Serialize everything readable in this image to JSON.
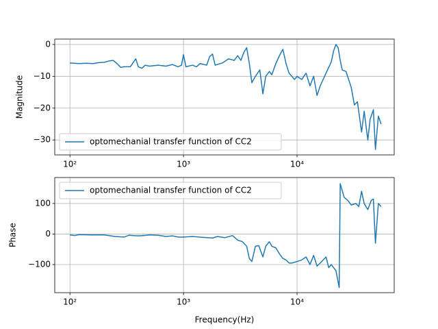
{
  "chart_data": [
    {
      "type": "line",
      "ylabel": "Magnitude",
      "log_x": true,
      "grid": true,
      "legend": "lower left",
      "xlim": [
        73.5,
        71700
      ],
      "ylim": [
        -34.7,
        1.7
      ],
      "xticks": [
        {
          "value": 100,
          "label": "10²"
        },
        {
          "value": 1000,
          "label": "10³"
        },
        {
          "value": 10000,
          "label": "10⁴"
        }
      ],
      "yticks": [
        {
          "value": -30,
          "label": "−30"
        },
        {
          "value": -20,
          "label": "−20"
        },
        {
          "value": -10,
          "label": "−10"
        },
        0
      ],
      "x": [
        100,
        120,
        140,
        160,
        180,
        200,
        220,
        240,
        260,
        280,
        300,
        340,
        380,
        400,
        430,
        460,
        500,
        600,
        700,
        800,
        900,
        960,
        1000,
        1050,
        1200,
        1300,
        1400,
        1600,
        1700,
        1800,
        1900,
        2200,
        2500,
        2800,
        3000,
        3200,
        3400,
        3600,
        3800,
        4000,
        4300,
        4700,
        5000,
        5300,
        5700,
        6000,
        6500,
        7000,
        7500,
        8000,
        8500,
        9000,
        9500,
        10000,
        11000,
        12000,
        13000,
        14000,
        15000,
        16000,
        18000,
        20000,
        21000,
        22000,
        23000,
        24000,
        25000,
        27000,
        30000,
        32000,
        34000,
        37000,
        39000,
        42000,
        44000,
        47000,
        49000,
        52000,
        55000
      ],
      "series": [
        {
          "name": "optomechanial transfer function of CC2",
          "color": "#1f77b4",
          "values": [
            -5.8,
            -6,
            -5.9,
            -6,
            -5.7,
            -5.6,
            -5.2,
            -5,
            -6,
            -7.2,
            -7,
            -7,
            -4.5,
            -7,
            -7.5,
            -6.5,
            -6.8,
            -6.5,
            -6.8,
            -6.3,
            -7,
            -6.5,
            -3.2,
            -7,
            -6.5,
            -7,
            -6,
            -6.5,
            -3.8,
            -3,
            -6.5,
            -5.8,
            -4.5,
            -5,
            -3.5,
            -5,
            -2.5,
            -1,
            -6,
            -12,
            -10,
            -8,
            -15.5,
            -10,
            -8.5,
            -9.5,
            -6,
            -3.5,
            -1.5,
            -6,
            -9,
            -10,
            -11,
            -10,
            -11,
            -9,
            -13,
            -10,
            -16,
            -13,
            -9,
            -5.5,
            -2,
            0,
            -1,
            -5,
            -8,
            -8.5,
            -13.5,
            -19,
            -18,
            -27.5,
            -21,
            -30,
            -23.5,
            -20.5,
            -33,
            -22.5,
            -25
          ]
        }
      ]
    },
    {
      "type": "line",
      "ylabel": "Phase",
      "xlabel": "Frequency(Hz)",
      "log_x": true,
      "grid": true,
      "legend": "upper left",
      "xlim": [
        73.5,
        71700
      ],
      "ylim": [
        -192,
        185
      ],
      "xticks": [
        {
          "value": 100,
          "label": "10²"
        },
        {
          "value": 1000,
          "label": "10³"
        },
        {
          "value": 10000,
          "label": "10⁴"
        }
      ],
      "yticks": [
        {
          "value": -100,
          "label": "−100"
        },
        0,
        100
      ],
      "x": [
        100,
        110,
        120,
        150,
        200,
        250,
        300,
        330,
        400,
        450,
        500,
        600,
        700,
        800,
        900,
        1000,
        1200,
        1500,
        1800,
        2000,
        2300,
        2700,
        3000,
        3300,
        3600,
        3800,
        4000,
        4300,
        4600,
        5000,
        5300,
        5700,
        6000,
        6500,
        7000,
        7500,
        8000,
        8500,
        9000,
        10000,
        11000,
        12000,
        13000,
        14000,
        15000,
        16000,
        18000,
        19000,
        20000,
        22000,
        23500,
        24000,
        26000,
        28000,
        30000,
        33000,
        35000,
        37000,
        39000,
        42000,
        45000,
        47000,
        49000,
        52000,
        55000
      ],
      "series": [
        {
          "name": "optomechanial transfer function of CC2",
          "color": "#1f77b4",
          "values": [
            -3,
            -5,
            -2,
            -3,
            -3,
            -8,
            -10,
            -4,
            -6,
            -5,
            -3,
            -4,
            -8,
            -6,
            -10,
            -10,
            -8,
            -11,
            -13,
            -8,
            -12,
            -5,
            -20,
            -25,
            -40,
            -80,
            -90,
            -40,
            -38,
            -75,
            -40,
            -25,
            -40,
            -45,
            -65,
            -80,
            -85,
            -95,
            -95,
            -90,
            -85,
            -75,
            -100,
            -70,
            -105,
            -95,
            -75,
            -110,
            -100,
            -120,
            -175,
            165,
            120,
            110,
            95,
            100,
            90,
            140,
            100,
            80,
            110,
            115,
            -30,
            100,
            90
          ]
        }
      ]
    }
  ]
}
